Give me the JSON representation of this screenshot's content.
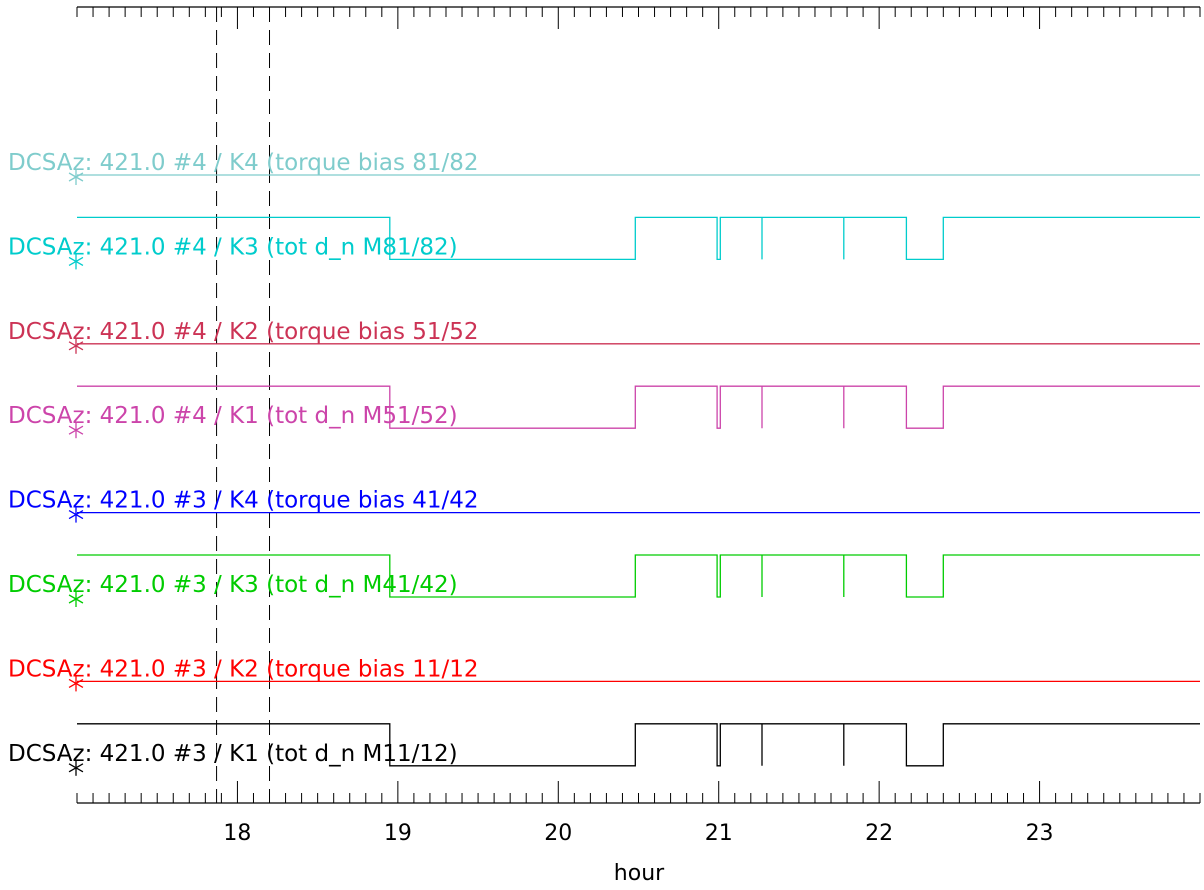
{
  "chart_data": {
    "type": "line",
    "xlabel": "hour",
    "xlim": [
      17.0,
      24.0
    ],
    "x_ticks": [
      18,
      19,
      20,
      21,
      22,
      23
    ],
    "x_tick_labels": [
      "18",
      "19",
      "20",
      "21",
      "22",
      "23"
    ],
    "minor_tick_step": 0.1,
    "markers_vertical": [
      17.87,
      18.2
    ],
    "grid": false,
    "series": [
      {
        "name": "DCSAz: 421.0 #4 / K4 (torque bias 81/82",
        "color": "#7fcccc",
        "kind": "flat"
      },
      {
        "name": "DCSAz: 421.0 #4 / K3 (tot d_n M81/82)",
        "color": "#00cccc",
        "kind": "step"
      },
      {
        "name": "DCSAz: 421.0 #4 / K2 (torque bias 51/52",
        "color": "#cc3355",
        "kind": "flat"
      },
      {
        "name": "DCSAz: 421.0 #4 / K1 (tot d_n M51/52)",
        "color": "#cc44aa",
        "kind": "step"
      },
      {
        "name": "DCSAz: 421.0 #3 / K4 (torque bias 41/42",
        "color": "#0000ff",
        "kind": "flat"
      },
      {
        "name": "DCSAz: 421.0 #3 / K3 (tot d_n M41/42)",
        "color": "#00cc00",
        "kind": "step"
      },
      {
        "name": "DCSAz: 421.0 #3 / K2 (torque bias 11/12",
        "color": "#ff0000",
        "kind": "flat"
      },
      {
        "name": "DCSAz: 421.0 #3 / K1 (tot d_n M11/12)",
        "color": "#000000",
        "kind": "step"
      }
    ],
    "step_profile": {
      "x": [
        17.0,
        18.95,
        18.95,
        20.48,
        20.48,
        20.99,
        20.99,
        21.01,
        21.01,
        21.27,
        21.27,
        21.27,
        21.78,
        21.78,
        21.78,
        22.17,
        22.17,
        22.4,
        22.4,
        24.0
      ],
      "y": [
        1,
        1,
        0,
        0,
        1,
        1,
        0,
        0,
        1,
        1,
        0,
        1,
        1,
        0,
        1,
        1,
        0,
        0,
        1,
        1
      ]
    }
  }
}
